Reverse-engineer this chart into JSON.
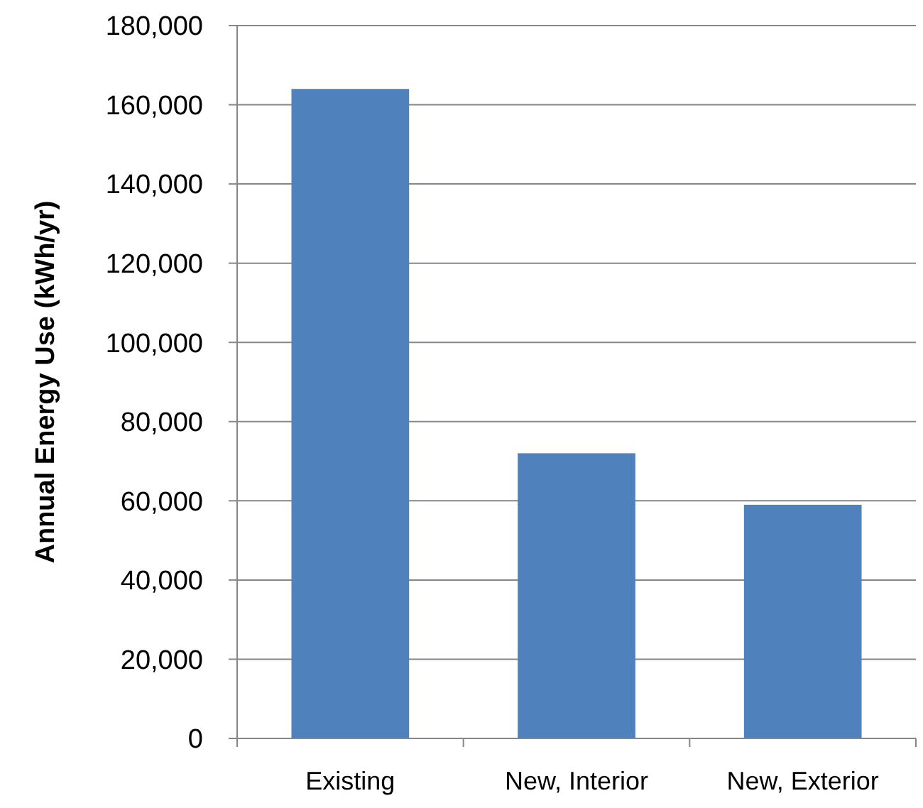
{
  "chart_data": {
    "type": "bar",
    "ylabel": "Annual Energy Use (kWh/yr)",
    "categories": [
      "Existing",
      "New, Interior",
      "New, Exterior"
    ],
    "values": [
      164000,
      72000,
      59000
    ],
    "color": "#4f81bd",
    "ylim": [
      0,
      180000
    ],
    "yticks": [
      {
        "value": 0,
        "label": "0"
      },
      {
        "value": 20000,
        "label": "20,000"
      },
      {
        "value": 40000,
        "label": "40,000"
      },
      {
        "value": 60000,
        "label": "60,000"
      },
      {
        "value": 80000,
        "label": "80,000"
      },
      {
        "value": 100000,
        "label": "100,000"
      },
      {
        "value": 120000,
        "label": "120,000"
      },
      {
        "value": 140000,
        "label": "140,000"
      },
      {
        "value": 160000,
        "label": "160,000"
      },
      {
        "value": 180000,
        "label": "180,000"
      }
    ],
    "grid": "y"
  }
}
